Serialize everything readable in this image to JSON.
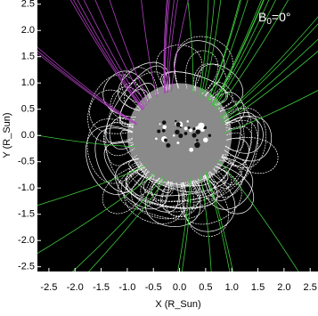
{
  "chart_data": {
    "type": "image",
    "annotation": {
      "base": "B",
      "subscript": "0",
      "rest": "=0°"
    },
    "xlabel": "X (R_Sun)",
    "ylabel": "Y (R_Sun)",
    "xlim": [
      -2.72,
      2.65
    ],
    "ylim": [
      -2.59,
      2.58
    ],
    "xticks": [
      -2.5,
      {
        "value": -2,
        "label": "-2.0"
      },
      -1.5,
      {
        "value": -1,
        "label": "-1.0"
      },
      -0.5,
      {
        "value": 0,
        "label": "0.0"
      },
      0.5,
      {
        "value": 1,
        "label": "1.0"
      },
      1.5,
      {
        "value": 2,
        "label": "2.0"
      },
      2.5
    ],
    "yticks": [
      -2.5,
      {
        "value": -2,
        "label": "-2.0"
      },
      -1.5,
      {
        "value": -1,
        "label": "-1.0"
      },
      -0.5,
      {
        "value": 0,
        "label": "0.0"
      },
      0.5,
      {
        "value": 1,
        "label": "1.0"
      },
      1.5,
      {
        "value": 2,
        "label": "2.0"
      },
      2.5
    ]
  }
}
